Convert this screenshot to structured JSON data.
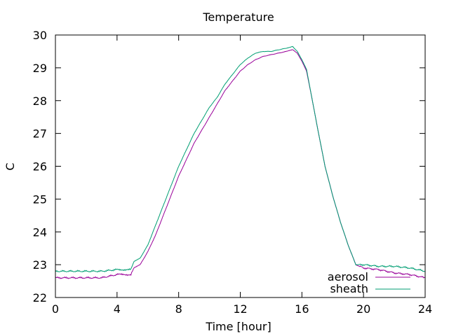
{
  "chart_data": {
    "type": "line",
    "title": "Temperature",
    "xlabel": "Time [hour]",
    "ylabel": "C",
    "xlim": [
      0,
      24
    ],
    "ylim": [
      22,
      30
    ],
    "xticks": [
      0,
      4,
      8,
      12,
      16,
      20,
      24
    ],
    "yticks": [
      22,
      23,
      24,
      25,
      26,
      27,
      28,
      29,
      30
    ],
    "grid": false,
    "legend_position": "bottom-right",
    "series": [
      {
        "name": "aerosol",
        "color": "#990099",
        "points": [
          [
            0,
            22.6
          ],
          [
            1,
            22.6
          ],
          [
            2,
            22.6
          ],
          [
            3,
            22.6
          ],
          [
            4,
            22.7
          ],
          [
            4.9,
            22.7
          ],
          [
            5.1,
            22.9
          ],
          [
            5.5,
            23.0
          ],
          [
            6,
            23.4
          ],
          [
            6.5,
            23.9
          ],
          [
            7,
            24.5
          ],
          [
            7.5,
            25.1
          ],
          [
            8,
            25.7
          ],
          [
            8.5,
            26.2
          ],
          [
            9,
            26.7
          ],
          [
            9.5,
            27.1
          ],
          [
            10,
            27.5
          ],
          [
            10.5,
            27.9
          ],
          [
            11,
            28.3
          ],
          [
            11.5,
            28.6
          ],
          [
            12,
            28.9
          ],
          [
            12.5,
            29.1
          ],
          [
            13,
            29.25
          ],
          [
            13.5,
            29.35
          ],
          [
            14,
            29.4
          ],
          [
            14.5,
            29.45
          ],
          [
            15,
            29.5
          ],
          [
            15.4,
            29.55
          ],
          [
            15.7,
            29.45
          ],
          [
            16,
            29.2
          ],
          [
            16.3,
            28.9
          ],
          [
            16.6,
            28.2
          ],
          [
            17,
            27.2
          ],
          [
            17.5,
            26.0
          ],
          [
            18,
            25.1
          ],
          [
            18.5,
            24.3
          ],
          [
            19,
            23.6
          ],
          [
            19.5,
            23.0
          ],
          [
            20,
            22.9
          ],
          [
            21,
            22.85
          ],
          [
            22,
            22.75
          ],
          [
            23,
            22.7
          ],
          [
            24,
            22.6
          ]
        ]
      },
      {
        "name": "sheath",
        "color": "#009E73",
        "points": [
          [
            0,
            22.8
          ],
          [
            1,
            22.8
          ],
          [
            2,
            22.8
          ],
          [
            3,
            22.8
          ],
          [
            4,
            22.85
          ],
          [
            4.9,
            22.85
          ],
          [
            5.1,
            23.1
          ],
          [
            5.5,
            23.2
          ],
          [
            6,
            23.6
          ],
          [
            6.5,
            24.2
          ],
          [
            7,
            24.8
          ],
          [
            7.5,
            25.4
          ],
          [
            8,
            26.0
          ],
          [
            8.5,
            26.5
          ],
          [
            9,
            27.0
          ],
          [
            9.5,
            27.4
          ],
          [
            10,
            27.8
          ],
          [
            10.5,
            28.1
          ],
          [
            11,
            28.5
          ],
          [
            11.5,
            28.8
          ],
          [
            12,
            29.1
          ],
          [
            12.5,
            29.3
          ],
          [
            13,
            29.45
          ],
          [
            13.5,
            29.5
          ],
          [
            14,
            29.5
          ],
          [
            14.5,
            29.55
          ],
          [
            15,
            29.6
          ],
          [
            15.4,
            29.65
          ],
          [
            15.7,
            29.5
          ],
          [
            16,
            29.25
          ],
          [
            16.3,
            28.95
          ],
          [
            16.6,
            28.2
          ],
          [
            17,
            27.2
          ],
          [
            17.5,
            26.0
          ],
          [
            18,
            25.1
          ],
          [
            18.5,
            24.3
          ],
          [
            19,
            23.6
          ],
          [
            19.5,
            23.0
          ],
          [
            20,
            23.0
          ],
          [
            21,
            22.95
          ],
          [
            22,
            22.95
          ],
          [
            23,
            22.9
          ],
          [
            24,
            22.8
          ]
        ]
      }
    ]
  }
}
